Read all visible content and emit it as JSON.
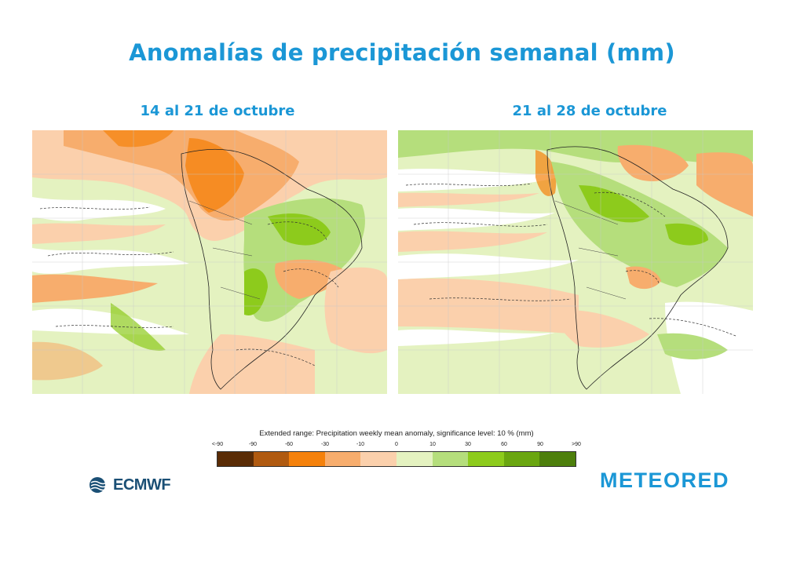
{
  "title": "Anomalías de precipitación semanal (mm)",
  "panels": [
    {
      "label": "14  al  21 de octubre"
    },
    {
      "label": "21 al 28 de octubre"
    }
  ],
  "legend": {
    "title": "Extended range: Precipitation weekly mean anomaly, significance level: 10 % (mm)",
    "ticks": [
      "<-90",
      "-90",
      "-60",
      "-30",
      "-10",
      "0",
      "10",
      "30",
      "60",
      "90",
      ">90"
    ],
    "colors": [
      "#5a2c06",
      "#b05a10",
      "#f5810b",
      "#f7ad6d",
      "#fbd0ac",
      "#e4f2c0",
      "#b5de7c",
      "#8dcb1c",
      "#6aa610",
      "#4d7f0c"
    ]
  },
  "logos": {
    "ecmwf": "ECMWF",
    "meteored": "METEORED"
  }
}
